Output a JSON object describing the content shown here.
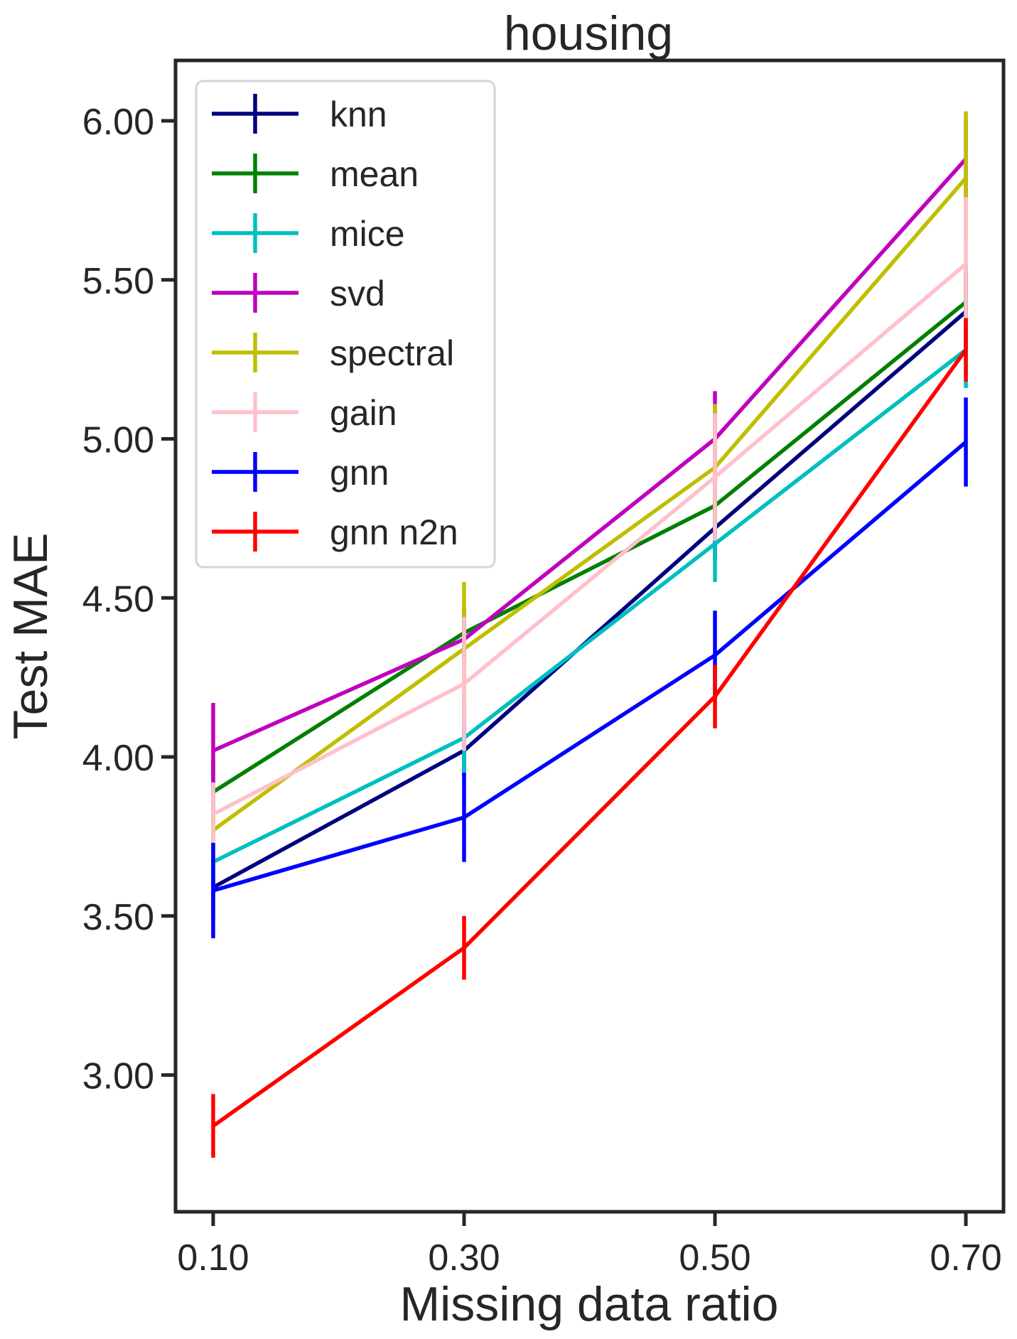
{
  "chart_data": {
    "type": "line",
    "title": "housing",
    "xlabel": "Missing data ratio",
    "ylabel": "Test MAE",
    "x": [
      0.1,
      0.3,
      0.5,
      0.7
    ],
    "xticks": [
      "0.10",
      "0.30",
      "0.50",
      "0.70"
    ],
    "yticks": [
      "3.00",
      "3.50",
      "4.00",
      "4.50",
      "5.00",
      "5.50",
      "6.00"
    ],
    "xlim": [
      0.07,
      0.73
    ],
    "ylim": [
      2.57,
      6.19
    ],
    "grid": false,
    "legend_position": "top-left",
    "series": [
      {
        "name": "knn",
        "color": "#000080",
        "values": [
          3.59,
          4.02,
          4.72,
          5.4
        ],
        "errors": [
          0.1,
          0.08,
          0.1,
          0.12
        ]
      },
      {
        "name": "mean",
        "color": "#008000",
        "values": [
          3.89,
          4.39,
          4.79,
          5.43
        ],
        "errors": [
          0.1,
          0.08,
          0.1,
          0.12
        ]
      },
      {
        "name": "mice",
        "color": "#00BFBF",
        "values": [
          3.67,
          4.06,
          4.67,
          5.28
        ],
        "errors": [
          0.1,
          0.12,
          0.12,
          0.12
        ]
      },
      {
        "name": "svd",
        "color": "#BF00BF",
        "values": [
          4.02,
          4.37,
          5.0,
          5.88
        ],
        "errors": [
          0.15,
          0.07,
          0.15,
          0.12
        ]
      },
      {
        "name": "spectral",
        "color": "#BFBF00",
        "values": [
          3.77,
          4.34,
          4.91,
          5.82
        ],
        "errors": [
          0.12,
          0.21,
          0.2,
          0.21
        ]
      },
      {
        "name": "gain",
        "color": "#FFC0CB",
        "values": [
          3.82,
          4.23,
          4.88,
          5.55
        ],
        "errors": [
          0.1,
          0.21,
          0.2,
          0.21
        ]
      },
      {
        "name": "gnn",
        "color": "#0000FF",
        "values": [
          3.58,
          3.81,
          4.32,
          4.99
        ],
        "errors": [
          0.15,
          0.14,
          0.14,
          0.14
        ]
      },
      {
        "name": "gnn n2n",
        "color": "#FF0000",
        "values": [
          2.84,
          3.4,
          4.19,
          5.28
        ],
        "errors": [
          0.1,
          0.1,
          0.1,
          0.1
        ]
      }
    ]
  }
}
